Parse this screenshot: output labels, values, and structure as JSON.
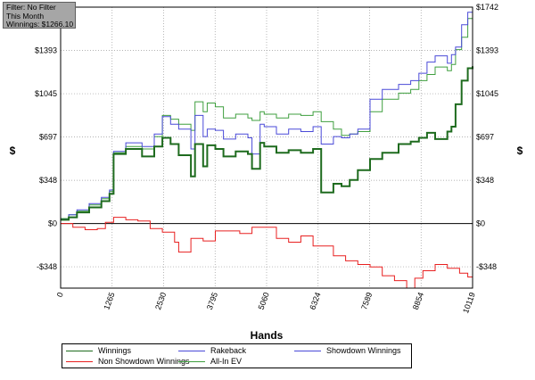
{
  "filter_box": {
    "line1": "Filter: No Filter",
    "line2": "This Month",
    "line3": "Winnings: $1266.10"
  },
  "colors": {
    "winnings": "#1e6b1e",
    "rakeback": "#4a4ad8",
    "showdown": "#4a4ad8",
    "non_showdown": "#e82020",
    "allin_ev": "#3f9f3f",
    "zero_line": "#000000",
    "grid": "#9a9a9a"
  },
  "chart_data": {
    "type": "line",
    "xlabel": "Hands",
    "ylabel": "$",
    "xlim": [
      0,
      10119
    ],
    "ylim": [
      -520,
      1742
    ],
    "x_ticks": [
      "0",
      "1265",
      "2530",
      "3795",
      "5060",
      "6324",
      "7589",
      "8854",
      "10119"
    ],
    "y_ticks": [
      {
        "value": 1742,
        "label": "$1742"
      },
      {
        "value": 1393,
        "label": "$1393"
      },
      {
        "value": 1045,
        "label": "$1045"
      },
      {
        "value": 697,
        "label": "$697"
      },
      {
        "value": 348,
        "label": "$348"
      },
      {
        "value": 0,
        "label": "$0"
      },
      {
        "value": -348,
        "label": "-$348"
      }
    ],
    "grid": true,
    "legend_position": "bottom",
    "series": [
      {
        "name": "Winnings",
        "color": "#1e6b1e",
        "x": [
          0,
          200,
          400,
          700,
          1000,
          1200,
          1300,
          1600,
          2000,
          2300,
          2500,
          2700,
          2900,
          3200,
          3300,
          3500,
          3600,
          3800,
          4000,
          4300,
          4600,
          4700,
          4900,
          5000,
          5300,
          5600,
          5900,
          6200,
          6400,
          6700,
          6900,
          7100,
          7300,
          7600,
          7900,
          8300,
          8600,
          8800,
          9000,
          9200,
          9500,
          9600,
          9700,
          9850,
          10000,
          10119
        ],
        "values": [
          30,
          50,
          90,
          130,
          180,
          240,
          560,
          600,
          540,
          620,
          690,
          640,
          550,
          380,
          640,
          460,
          630,
          600,
          540,
          580,
          560,
          440,
          650,
          620,
          570,
          590,
          570,
          600,
          250,
          320,
          300,
          350,
          430,
          520,
          570,
          640,
          660,
          690,
          730,
          680,
          740,
          780,
          960,
          1150,
          1250,
          1266
        ]
      },
      {
        "name": "Rakeback",
        "color": "#4a4ad8",
        "x": [
          0,
          200,
          400,
          700,
          1000,
          1200,
          1300,
          1600,
          2000,
          2300,
          2500,
          2700,
          2900,
          3200,
          3300,
          3500,
          3600,
          3800,
          4000,
          4300,
          4600,
          4700,
          4900,
          5000,
          5300,
          5600,
          5900,
          6200,
          6400,
          6700,
          6900,
          7100,
          7300,
          7600,
          7900,
          8300,
          8600,
          8800,
          9000,
          9200,
          9500,
          9600,
          9700,
          9850,
          10000,
          10119
        ],
        "values": [
          35,
          70,
          110,
          160,
          210,
          270,
          580,
          650,
          620,
          720,
          860,
          800,
          760,
          600,
          870,
          700,
          760,
          750,
          680,
          720,
          690,
          560,
          800,
          780,
          720,
          760,
          740,
          780,
          640,
          700,
          690,
          720,
          760,
          1000,
          1080,
          1120,
          1150,
          1210,
          1300,
          1350,
          1290,
          1360,
          1420,
          1600,
          1700,
          1742
        ]
      },
      {
        "name": "Showdown Winnings",
        "color": "#4a4ad8",
        "x": [],
        "values": []
      },
      {
        "name": "Non Showdown Winnings",
        "color": "#e82020",
        "x": [
          0,
          300,
          600,
          900,
          1100,
          1300,
          1600,
          1900,
          2200,
          2500,
          2800,
          2900,
          3200,
          3500,
          3800,
          4100,
          4400,
          4700,
          5000,
          5300,
          5600,
          5900,
          6200,
          6400,
          6700,
          7000,
          7300,
          7600,
          7900,
          8200,
          8500,
          8700,
          8900,
          9200,
          9500,
          9800,
          10000,
          10119
        ],
        "values": [
          0,
          -30,
          -50,
          -40,
          10,
          50,
          30,
          20,
          -40,
          -70,
          -150,
          -230,
          -120,
          -140,
          -60,
          -60,
          -80,
          -30,
          -30,
          -120,
          -150,
          -100,
          -180,
          -180,
          -260,
          -300,
          -330,
          -350,
          -420,
          -460,
          -520,
          -440,
          -380,
          -330,
          -360,
          -400,
          -430,
          -480
        ]
      },
      {
        "name": "All-In EV",
        "color": "#3f9f3f",
        "x": [
          0,
          200,
          400,
          700,
          1000,
          1200,
          1300,
          1600,
          2000,
          2300,
          2500,
          2700,
          2900,
          3200,
          3300,
          3500,
          3600,
          3800,
          4000,
          4300,
          4600,
          4700,
          4900,
          5000,
          5300,
          5600,
          5900,
          6200,
          6400,
          6700,
          6900,
          7100,
          7300,
          7600,
          7900,
          8300,
          8600,
          8800,
          9000,
          9200,
          9500,
          9600,
          9700,
          9850,
          10000,
          10119
        ],
        "values": [
          40,
          70,
          100,
          150,
          200,
          260,
          570,
          620,
          600,
          700,
          870,
          840,
          800,
          750,
          980,
          900,
          970,
          940,
          850,
          880,
          850,
          830,
          900,
          880,
          850,
          880,
          870,
          900,
          820,
          760,
          710,
          720,
          740,
          900,
          1000,
          1050,
          1080,
          1150,
          1200,
          1260,
          1230,
          1280,
          1400,
          1500,
          1650,
          1742
        ]
      }
    ]
  },
  "legend": {
    "items": [
      {
        "label": "Winnings",
        "color": "#1e6b1e"
      },
      {
        "label": "Rakeback",
        "color": "#4a4ad8"
      },
      {
        "label": "Showdown Winnings",
        "color": "#4a4ad8"
      },
      {
        "label": "Non Showdown Winnings",
        "color": "#e82020"
      },
      {
        "label": "All-In EV",
        "color": "#3f9f3f"
      }
    ]
  }
}
